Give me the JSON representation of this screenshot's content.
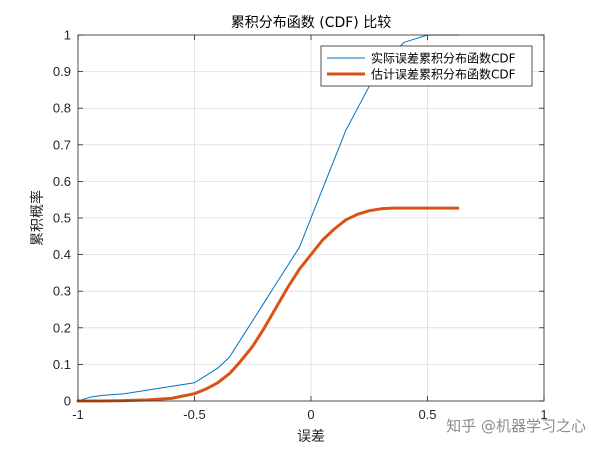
{
  "chart_data": {
    "type": "line",
    "title": "累积分布函数 (CDF) 比较",
    "xlabel": "误差",
    "ylabel": "累积概率",
    "xlim": [
      -1,
      1
    ],
    "ylim": [
      0,
      1
    ],
    "xticks": [
      -1,
      -0.5,
      0,
      0.5,
      1
    ],
    "xtick_labels": [
      "-1",
      "-0.5",
      "0",
      "0.5",
      "1"
    ],
    "yticks": [
      0,
      0.1,
      0.2,
      0.3,
      0.4,
      0.5,
      0.6,
      0.7,
      0.8,
      0.9,
      1
    ],
    "ytick_labels": [
      "0",
      "0.1",
      "0.2",
      "0.3",
      "0.4",
      "0.5",
      "0.6",
      "0.7",
      "0.8",
      "0.9",
      "1"
    ],
    "grid": true,
    "legend_position": "top-right",
    "series": [
      {
        "name": "实际误差累积分布函数CDF",
        "color": "#0072BD",
        "x": [
          -1.0,
          -0.95,
          -0.9,
          -0.8,
          -0.7,
          -0.6,
          -0.5,
          -0.45,
          -0.4,
          -0.35,
          -0.3,
          -0.25,
          -0.2,
          -0.15,
          -0.1,
          -0.05,
          0.0,
          0.05,
          0.1,
          0.15,
          0.2,
          0.25,
          0.3,
          0.35,
          0.4,
          0.45,
          0.5,
          0.55,
          0.6,
          0.63
        ],
        "y": [
          0.0,
          0.01,
          0.015,
          0.02,
          0.03,
          0.04,
          0.05,
          0.07,
          0.09,
          0.12,
          0.17,
          0.22,
          0.27,
          0.32,
          0.37,
          0.42,
          0.5,
          0.58,
          0.66,
          0.74,
          0.8,
          0.86,
          0.91,
          0.95,
          0.98,
          0.99,
          1.0,
          1.0,
          1.0,
          1.0
        ]
      },
      {
        "name": "估计误差累积分布函数CDF",
        "color": "#D95319",
        "x": [
          -1.0,
          -0.9,
          -0.8,
          -0.7,
          -0.6,
          -0.5,
          -0.45,
          -0.4,
          -0.35,
          -0.3,
          -0.25,
          -0.2,
          -0.15,
          -0.1,
          -0.05,
          0.0,
          0.05,
          0.1,
          0.15,
          0.2,
          0.25,
          0.3,
          0.35,
          0.4,
          0.5,
          0.6,
          0.63
        ],
        "y": [
          0.0,
          0.0,
          0.001,
          0.003,
          0.007,
          0.02,
          0.033,
          0.05,
          0.075,
          0.11,
          0.15,
          0.2,
          0.255,
          0.31,
          0.36,
          0.4,
          0.44,
          0.47,
          0.495,
          0.51,
          0.52,
          0.525,
          0.527,
          0.527,
          0.527,
          0.527,
          0.527
        ]
      }
    ]
  },
  "watermark": "知乎 @机器学习之心"
}
